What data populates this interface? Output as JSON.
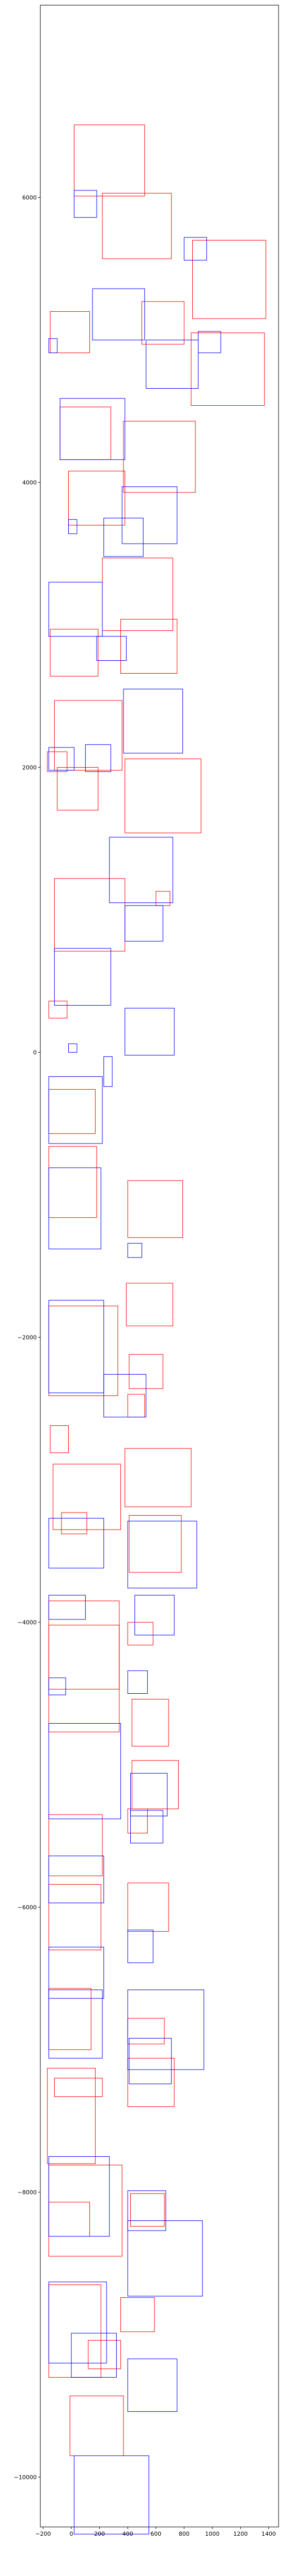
{
  "chart_data": {
    "type": "rectangles",
    "title": "",
    "xlabel": "",
    "ylabel": "",
    "xlim": [
      -220,
      1470
    ],
    "ylim": [
      -10350,
      7350
    ],
    "grid": false,
    "x_ticks": [
      -200,
      0,
      200,
      400,
      600,
      800,
      1000,
      1200,
      1400
    ],
    "y_ticks": [
      -10000,
      -8000,
      -6000,
      -4000,
      -2000,
      0,
      2000,
      4000,
      6000
    ],
    "colors": {
      "red": "#ff0000",
      "blue": "#0000ff"
    },
    "red_rectangles": [
      [
        20,
        6010,
        500,
        500
      ],
      [
        220,
        5570,
        490,
        460
      ],
      [
        860,
        5150,
        520,
        550
      ],
      [
        -150,
        4910,
        280,
        290
      ],
      [
        500,
        4970,
        300,
        300
      ],
      [
        850,
        4540,
        520,
        510
      ],
      [
        -80,
        4160,
        360,
        370
      ],
      [
        370,
        3930,
        510,
        500
      ],
      [
        -20,
        3700,
        400,
        380
      ],
      [
        220,
        2960,
        500,
        510
      ],
      [
        -150,
        2640,
        340,
        330
      ],
      [
        350,
        2660,
        400,
        380
      ],
      [
        -120,
        1980,
        480,
        490
      ],
      [
        380,
        1540,
        540,
        520
      ],
      [
        -170,
        1970,
        140,
        140
      ],
      [
        -100,
        1700,
        290,
        300
      ],
      [
        600,
        1030,
        100,
        100
      ],
      [
        -120,
        710,
        500,
        510
      ],
      [
        -160,
        240,
        130,
        120
      ],
      [
        400,
        -1300,
        390,
        400
      ],
      [
        -160,
        -570,
        330,
        310
      ],
      [
        -160,
        -1160,
        340,
        500
      ],
      [
        410,
        -2360,
        240,
        240
      ],
      [
        390,
        -1920,
        330,
        300
      ],
      [
        -160,
        -2410,
        490,
        630
      ],
      [
        400,
        -2560,
        120,
        160
      ],
      [
        -150,
        -2810,
        130,
        190
      ],
      [
        -130,
        -3350,
        480,
        460
      ],
      [
        380,
        -3190,
        470,
        410
      ],
      [
        410,
        -3650,
        370,
        400
      ],
      [
        -70,
        -3380,
        180,
        150
      ],
      [
        -160,
        -4770,
        500,
        750
      ],
      [
        400,
        -4160,
        180,
        160
      ],
      [
        -160,
        -4470,
        500,
        620
      ],
      [
        430,
        -4870,
        260,
        330
      ],
      [
        430,
        -5310,
        330,
        340
      ],
      [
        400,
        -5480,
        140,
        170
      ],
      [
        -160,
        -5780,
        380,
        430
      ],
      [
        400,
        -6170,
        290,
        340
      ],
      [
        -160,
        -6300,
        370,
        460
      ],
      [
        -160,
        -7000,
        300,
        430
      ],
      [
        400,
        -6960,
        260,
        180
      ],
      [
        -170,
        -7800,
        340,
        670
      ],
      [
        -120,
        -7330,
        340,
        130
      ],
      [
        400,
        -7400,
        330,
        340
      ],
      [
        -160,
        -8310,
        290,
        240
      ],
      [
        420,
        -8240,
        240,
        230
      ],
      [
        -160,
        -8450,
        520,
        640
      ],
      [
        -160,
        -9300,
        370,
        650
      ],
      [
        350,
        -8980,
        240,
        240
      ],
      [
        120,
        -9240,
        230,
        200
      ],
      [
        -10,
        -9850,
        380,
        420
      ]
    ],
    "blue_rectangles": [
      [
        20,
        5860,
        160,
        190
      ],
      [
        150,
        5000,
        370,
        360
      ],
      [
        800,
        5560,
        160,
        160
      ],
      [
        900,
        4910,
        160,
        150
      ],
      [
        -160,
        4910,
        60,
        100
      ],
      [
        530,
        4660,
        370,
        340
      ],
      [
        -80,
        4160,
        460,
        430
      ],
      [
        360,
        3570,
        390,
        400
      ],
      [
        -20,
        3640,
        60,
        100
      ],
      [
        230,
        3480,
        280,
        270
      ],
      [
        -160,
        2920,
        380,
        380
      ],
      [
        180,
        2750,
        210,
        170
      ],
      [
        370,
        2100,
        420,
        450
      ],
      [
        -160,
        1980,
        180,
        160
      ],
      [
        100,
        1970,
        180,
        190
      ],
      [
        270,
        1050,
        450,
        460
      ],
      [
        380,
        780,
        270,
        250
      ],
      [
        -120,
        330,
        400,
        400
      ],
      [
        -20,
        0,
        60,
        60
      ],
      [
        380,
        -20,
        350,
        330
      ],
      [
        230,
        -240,
        60,
        210
      ],
      [
        -160,
        -640,
        380,
        470
      ],
      [
        -160,
        -1380,
        370,
        570
      ],
      [
        400,
        -1440,
        100,
        100
      ],
      [
        -160,
        -2390,
        390,
        650
      ],
      [
        230,
        -2560,
        300,
        300
      ],
      [
        -160,
        -3620,
        390,
        350
      ],
      [
        -160,
        -3980,
        260,
        170
      ],
      [
        400,
        -3760,
        490,
        470
      ],
      [
        450,
        -4090,
        280,
        280
      ],
      [
        -160,
        -4510,
        120,
        120
      ],
      [
        400,
        -4500,
        140,
        160
      ],
      [
        -160,
        -5380,
        510,
        670
      ],
      [
        420,
        -5360,
        260,
        300
      ],
      [
        420,
        -5550,
        230,
        230
      ],
      [
        -160,
        -5970,
        390,
        330
      ],
      [
        400,
        -6390,
        180,
        230
      ],
      [
        -160,
        -6640,
        390,
        360
      ],
      [
        400,
        -7140,
        540,
        560
      ],
      [
        -160,
        -7060,
        380,
        480
      ],
      [
        410,
        -7240,
        300,
        320
      ],
      [
        -160,
        -8310,
        430,
        560
      ],
      [
        400,
        -8270,
        270,
        280
      ],
      [
        -160,
        -9200,
        410,
        570
      ],
      [
        400,
        -8730,
        530,
        530
      ],
      [
        0,
        -9300,
        320,
        310
      ],
      [
        400,
        -9540,
        350,
        370
      ],
      [
        20,
        -10400,
        530,
        550
      ]
    ]
  }
}
